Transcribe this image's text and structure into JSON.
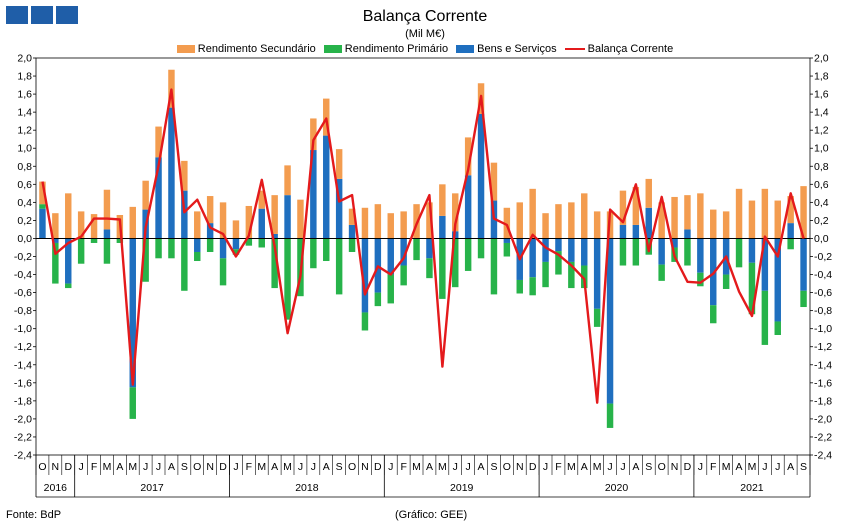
{
  "header": {
    "title": "Balança Corrente",
    "subtitle": "(Mil M€)"
  },
  "footer": {
    "source": "Fonte: BdP",
    "credit": "(Gráfico: GEE)"
  },
  "colors": {
    "secundario": "#f39c4f",
    "primario": "#27b34a",
    "bens": "#1f6fbf",
    "balanca": "#e41a1c",
    "logo": "#1f5ea8"
  },
  "chart_data": {
    "type": "bar",
    "stacked": true,
    "ylim": [
      -2.4,
      2.0
    ],
    "yticks": [
      "2,0",
      "1,8",
      "1,6",
      "1,4",
      "1,2",
      "1,0",
      "0,8",
      "0,6",
      "0,4",
      "0,2",
      "0,0",
      "-0,2",
      "-0,4",
      "-0,6",
      "-0,8",
      "-1,0",
      "-1,2",
      "-1,4",
      "-1,6",
      "-1,8",
      "-2,0",
      "-2,2",
      "-2,4"
    ],
    "categories": [
      "O",
      "N",
      "D",
      "J",
      "F",
      "M",
      "A",
      "M",
      "J",
      "J",
      "A",
      "S",
      "O",
      "N",
      "D",
      "J",
      "F",
      "M",
      "A",
      "M",
      "J",
      "J",
      "A",
      "S",
      "O",
      "N",
      "D",
      "J",
      "F",
      "M",
      "A",
      "M",
      "J",
      "J",
      "A",
      "S",
      "O",
      "N",
      "D",
      "J",
      "F",
      "M",
      "A",
      "M",
      "J",
      "J",
      "A",
      "S",
      "O",
      "N",
      "D",
      "J",
      "F",
      "M",
      "A",
      "M",
      "J",
      "J",
      "A",
      "S"
    ],
    "years": [
      {
        "label": "2016",
        "start": 0,
        "count": 3
      },
      {
        "label": "2017",
        "start": 3,
        "count": 12
      },
      {
        "label": "2018",
        "start": 15,
        "count": 12
      },
      {
        "label": "2019",
        "start": 27,
        "count": 12
      },
      {
        "label": "2020",
        "start": 39,
        "count": 12
      },
      {
        "label": "2021",
        "start": 51,
        "count": 9
      }
    ],
    "legend_position": "top",
    "series": [
      {
        "name": "Rendimento Secundário",
        "type": "bar",
        "values": [
          0.25,
          0.28,
          0.5,
          0.3,
          0.27,
          0.44,
          0.26,
          0.35,
          0.32,
          0.34,
          0.42,
          0.33,
          0.3,
          0.3,
          0.4,
          0.2,
          0.36,
          0.2,
          0.43,
          0.33,
          0.43,
          0.35,
          0.41,
          0.33,
          0.18,
          0.34,
          0.38,
          0.28,
          0.3,
          0.38,
          0.4,
          0.35,
          0.42,
          0.42,
          0.34,
          0.42,
          0.34,
          0.4,
          0.55,
          0.28,
          0.38,
          0.4,
          0.5,
          0.3,
          0.3,
          0.38,
          0.42,
          0.32,
          0.4,
          0.46,
          0.38,
          0.5,
          0.32,
          0.3,
          0.55,
          0.42,
          0.55,
          0.42,
          0.3,
          0.58
        ]
      },
      {
        "name": "Rendimento Primário",
        "type": "bar",
        "values": [
          0.05,
          -0.45,
          -0.05,
          -0.28,
          -0.05,
          -0.28,
          -0.05,
          -0.35,
          -0.48,
          -0.22,
          -0.22,
          -0.58,
          -0.1,
          -0.15,
          -0.3,
          -0.06,
          -0.08,
          -0.1,
          -0.55,
          -0.9,
          -0.64,
          -0.33,
          -0.25,
          -0.62,
          -0.15,
          -0.2,
          -0.15,
          -0.32,
          -0.22,
          -0.24,
          -0.22,
          -0.67,
          -0.54,
          -0.36,
          -0.22,
          -0.62,
          -0.15,
          -0.15,
          -0.2,
          -0.28,
          -0.26,
          -0.29,
          -0.25,
          -0.2,
          -0.27,
          -0.3,
          -0.3,
          -0.18,
          -0.18,
          -0.16,
          -0.3,
          -0.15,
          -0.2,
          -0.16,
          -0.32,
          -0.57,
          -0.6,
          -0.15,
          -0.12,
          -0.18
        ]
      },
      {
        "name": "Bens e Serviços",
        "type": "bar",
        "values": [
          0.33,
          -0.05,
          -0.5,
          0.0,
          0.0,
          0.1,
          0.0,
          -1.65,
          0.32,
          0.9,
          1.45,
          0.53,
          -0.15,
          0.17,
          -0.22,
          -0.12,
          0.0,
          0.33,
          0.05,
          0.48,
          0.0,
          0.98,
          1.14,
          0.66,
          0.15,
          -0.82,
          -0.6,
          -0.4,
          -0.3,
          0.0,
          -0.22,
          0.25,
          0.08,
          0.7,
          1.38,
          0.42,
          -0.05,
          -0.46,
          -0.43,
          -0.26,
          -0.14,
          -0.26,
          -0.3,
          -0.78,
          -1.83,
          0.15,
          0.15,
          0.34,
          -0.29,
          -0.1,
          0.1,
          -0.38,
          -0.74,
          -0.4,
          0.0,
          -0.27,
          -0.58,
          -0.92,
          0.17,
          -0.58
        ]
      },
      {
        "name": "Balança Corrente",
        "type": "line",
        "values": [
          0.63,
          -0.17,
          -0.05,
          0.02,
          0.22,
          0.22,
          0.21,
          -1.62,
          0.12,
          0.81,
          1.65,
          0.29,
          0.43,
          0.12,
          0.05,
          -0.2,
          0.03,
          0.65,
          -0.09,
          -1.05,
          -0.42,
          1.09,
          1.33,
          0.41,
          0.48,
          -0.62,
          -0.31,
          -0.4,
          -0.22,
          0.16,
          0.48,
          -1.42,
          0.16,
          0.76,
          1.58,
          0.22,
          0.15,
          -0.23,
          0.04,
          -0.1,
          -0.18,
          -0.3,
          -0.45,
          -1.82,
          0.32,
          0.18,
          0.6,
          -0.14,
          0.46,
          -0.2,
          -0.48,
          -0.49,
          -0.39,
          -0.2,
          -0.59,
          -0.86,
          0.02,
          -0.2,
          0.5,
          0.0
        ]
      }
    ]
  }
}
